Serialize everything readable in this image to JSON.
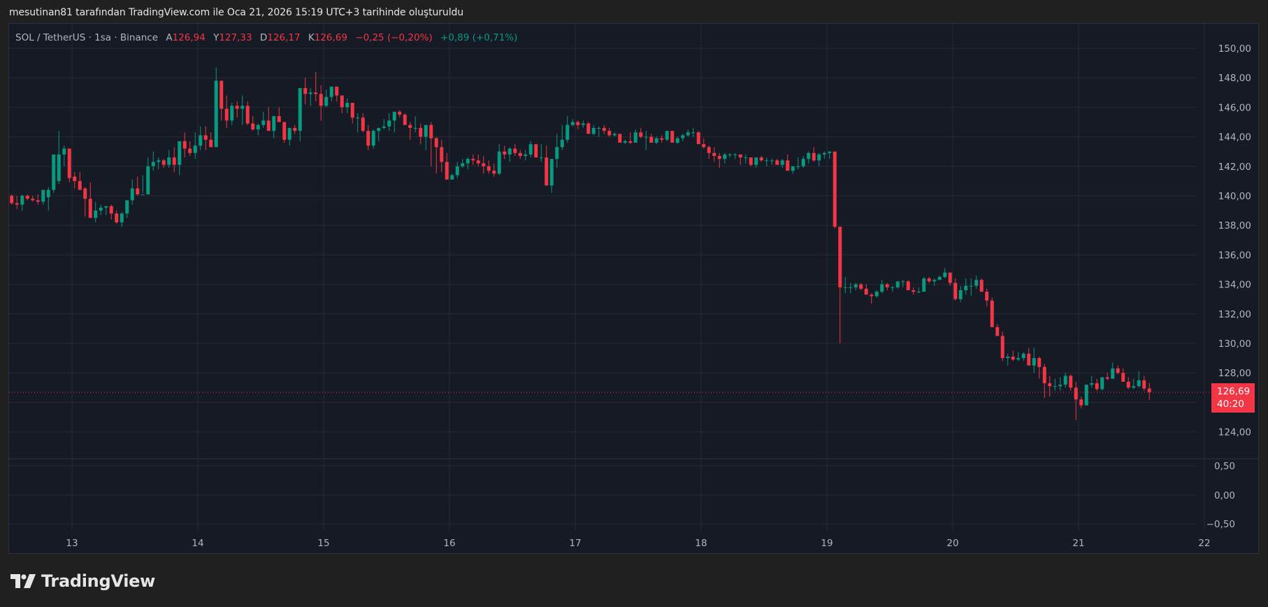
{
  "header": {
    "credit": "mesutinan81 tarafından TradingView.com ile Oca 21, 2026 15:19 UTC+3 tarihinde oluşturuldu"
  },
  "legend": {
    "symbol": "SOL / TetherUS · 1sa · Binance",
    "open_label": "A",
    "open": "126,94",
    "high_label": "Y",
    "high": "127,33",
    "low_label": "D",
    "low": "126,17",
    "close_label": "K",
    "close": "126,69",
    "change": "−0,25 (−0,20%)",
    "change2": "+0,89 (+0,71%)"
  },
  "price_tag": {
    "price": "126,69",
    "countdown": "40:20"
  },
  "logo": {
    "text": "TradingView"
  },
  "colors": {
    "up": "#089981",
    "down": "#f23645",
    "background": "#161a25",
    "grid": "#262a35"
  },
  "chart_data": {
    "type": "candlestick",
    "title": "SOL / TetherUS · 1sa · Binance",
    "xlabel": "",
    "ylabel": "",
    "x_ticks": [
      "13",
      "14",
      "15",
      "16",
      "17",
      "18",
      "19",
      "20",
      "21",
      "22"
    ],
    "y_ticks": [
      "150,00",
      "148,00",
      "146,00",
      "144,00",
      "142,00",
      "140,00",
      "138,00",
      "136,00",
      "134,00",
      "132,00",
      "130,00",
      "128,00",
      "126,00",
      "124,00"
    ],
    "ylim": [
      123.0,
      151.5
    ],
    "sub_pane": {
      "y_ticks": [
        "0,50",
        "0,00",
        "−0,50"
      ],
      "ylim": [
        -0.6,
        0.6
      ]
    },
    "grid": true,
    "last_price": 126.69,
    "candles_per_day": 24,
    "first_candle_offset_hours": -12,
    "ohlc": [
      [
        140.0,
        140.1,
        139.4,
        139.5
      ],
      [
        139.5,
        140.0,
        139.1,
        139.4
      ],
      [
        139.4,
        140.1,
        139.0,
        140.0
      ],
      [
        140.0,
        140.1,
        139.7,
        139.8
      ],
      [
        139.8,
        140.0,
        139.6,
        139.7
      ],
      [
        139.7,
        140.1,
        139.4,
        139.6
      ],
      [
        139.6,
        140.3,
        139.4,
        140.4
      ],
      [
        139.9,
        140.6,
        139.0,
        140.4
      ],
      [
        140.4,
        141.5,
        140.2,
        142.8
      ],
      [
        141.0,
        144.4,
        140.8,
        142.8
      ],
      [
        142.8,
        143.4,
        142.0,
        143.2
      ],
      [
        143.2,
        143.0,
        140.9,
        141.2
      ],
      [
        141.3,
        141.6,
        140.5,
        141.0
      ],
      [
        141.0,
        141.6,
        140.4,
        140.4
      ],
      [
        140.5,
        140.6,
        138.6,
        139.8
      ],
      [
        139.8,
        140.9,
        138.8,
        138.5
      ],
      [
        138.5,
        139.6,
        138.2,
        139.0
      ],
      [
        139.0,
        139.4,
        138.7,
        139.2
      ],
      [
        139.2,
        139.3,
        138.7,
        139.3
      ],
      [
        139.3,
        139.4,
        138.4,
        138.8
      ],
      [
        138.8,
        139.0,
        138.1,
        138.2
      ],
      [
        138.2,
        138.9,
        137.9,
        138.8
      ],
      [
        138.8,
        139.5,
        138.5,
        139.7
      ],
      [
        139.7,
        141.1,
        139.4,
        140.5
      ],
      [
        140.5,
        141.3,
        140.0,
        140.1
      ],
      [
        140.1,
        141.4,
        140.2,
        140.1
      ],
      [
        140.1,
        142.6,
        140.1,
        142.0
      ],
      [
        142.0,
        143.0,
        141.7,
        142.3
      ],
      [
        142.3,
        142.6,
        141.8,
        142.4
      ],
      [
        142.4,
        142.5,
        141.9,
        142.1
      ],
      [
        142.1,
        143.1,
        141.9,
        142.6
      ],
      [
        142.6,
        143.3,
        141.6,
        142.1
      ],
      [
        142.1,
        143.6,
        141.4,
        143.7
      ],
      [
        143.7,
        144.3,
        142.6,
        143.2
      ],
      [
        143.2,
        143.7,
        142.7,
        142.9
      ],
      [
        142.9,
        144.3,
        142.5,
        143.4
      ],
      [
        143.4,
        144.7,
        143.1,
        144.1
      ],
      [
        144.1,
        144.7,
        143.1,
        143.8
      ],
      [
        143.8,
        144.3,
        143.3,
        143.3
      ],
      [
        143.3,
        148.7,
        143.3,
        147.8
      ],
      [
        147.8,
        147.2,
        145.1,
        145.9
      ],
      [
        145.9,
        146.8,
        144.6,
        145.1
      ],
      [
        145.1,
        146.3,
        144.8,
        146.1
      ],
      [
        146.1,
        146.4,
        145.3,
        145.9
      ],
      [
        145.9,
        146.8,
        144.8,
        146.1
      ],
      [
        146.1,
        146.4,
        144.8,
        144.9
      ],
      [
        144.9,
        145.4,
        144.4,
        144.5
      ],
      [
        144.5,
        144.9,
        144.1,
        144.8
      ],
      [
        144.8,
        145.7,
        144.6,
        145.1
      ],
      [
        145.1,
        146.0,
        144.4,
        144.4
      ],
      [
        144.4,
        145.3,
        143.9,
        145.4
      ],
      [
        145.4,
        146.0,
        145.1,
        145.0
      ],
      [
        145.0,
        145.0,
        143.6,
        143.8
      ],
      [
        143.8,
        144.3,
        143.4,
        144.6
      ],
      [
        144.6,
        144.8,
        144.2,
        144.4
      ],
      [
        144.4,
        147.0,
        143.7,
        147.3
      ],
      [
        147.3,
        148.0,
        146.2,
        146.9
      ],
      [
        146.9,
        147.3,
        146.1,
        147.0
      ],
      [
        147.0,
        148.4,
        146.4,
        146.9
      ],
      [
        146.9,
        147.5,
        145.1,
        146.1
      ],
      [
        146.1,
        147.2,
        146.0,
        146.7
      ],
      [
        146.7,
        147.4,
        146.4,
        147.4
      ],
      [
        147.4,
        147.3,
        146.4,
        146.8
      ],
      [
        146.8,
        146.8,
        145.6,
        146.0
      ],
      [
        146.0,
        146.6,
        145.6,
        146.3
      ],
      [
        146.3,
        146.2,
        144.9,
        145.3
      ],
      [
        145.3,
        145.6,
        144.3,
        145.3
      ],
      [
        145.3,
        145.6,
        144.3,
        144.4
      ],
      [
        144.4,
        144.8,
        143.1,
        143.4
      ],
      [
        143.4,
        144.5,
        143.2,
        144.4
      ],
      [
        144.4,
        144.6,
        143.7,
        144.6
      ],
      [
        144.6,
        145.2,
        144.5,
        144.7
      ],
      [
        144.7,
        145.6,
        144.4,
        145.1
      ],
      [
        145.1,
        145.7,
        144.3,
        145.7
      ],
      [
        145.7,
        145.8,
        145.3,
        145.5
      ],
      [
        145.5,
        145.6,
        144.8,
        144.8
      ],
      [
        144.8,
        145.0,
        143.8,
        144.6
      ],
      [
        144.6,
        145.4,
        144.3,
        144.6
      ],
      [
        144.6,
        144.9,
        143.5,
        144.0
      ],
      [
        144.0,
        144.6,
        143.1,
        144.8
      ],
      [
        144.8,
        145.0,
        142.0,
        143.9
      ],
      [
        143.9,
        144.0,
        141.5,
        143.3
      ],
      [
        143.3,
        143.8,
        141.6,
        142.3
      ],
      [
        142.3,
        142.9,
        141.4,
        141.1
      ],
      [
        141.1,
        141.5,
        141.2,
        141.4
      ],
      [
        141.4,
        142.3,
        141.2,
        142.0
      ],
      [
        142.0,
        142.5,
        141.9,
        142.2
      ],
      [
        142.2,
        142.6,
        141.8,
        142.5
      ],
      [
        142.5,
        142.8,
        142.1,
        142.4
      ],
      [
        142.4,
        142.8,
        142.0,
        142.2
      ],
      [
        142.2,
        142.7,
        141.5,
        142.0
      ],
      [
        142.0,
        142.4,
        141.5,
        141.7
      ],
      [
        141.7,
        142.2,
        141.3,
        141.5
      ],
      [
        141.5,
        143.5,
        141.4,
        143.0
      ],
      [
        143.0,
        143.4,
        142.5,
        142.8
      ],
      [
        142.8,
        143.3,
        142.3,
        143.2
      ],
      [
        143.2,
        143.5,
        142.7,
        142.9
      ],
      [
        142.9,
        143.1,
        142.5,
        142.7
      ],
      [
        142.7,
        143.1,
        142.4,
        142.8
      ],
      [
        142.8,
        143.7,
        142.6,
        143.5
      ],
      [
        143.5,
        143.5,
        142.6,
        142.6
      ],
      [
        142.6,
        143.5,
        142.3,
        142.6
      ],
      [
        142.6,
        143.4,
        141.8,
        140.7
      ],
      [
        140.7,
        142.2,
        140.2,
        142.5
      ],
      [
        142.5,
        144.2,
        141.9,
        143.3
      ],
      [
        143.3,
        144.8,
        143.1,
        143.8
      ],
      [
        143.8,
        145.4,
        143.6,
        144.8
      ],
      [
        144.8,
        145.2,
        144.7,
        145.0
      ],
      [
        145.0,
        145.1,
        144.5,
        144.8
      ],
      [
        144.8,
        145.1,
        144.6,
        144.9
      ],
      [
        144.9,
        145.0,
        144.2,
        144.2
      ],
      [
        144.2,
        144.8,
        144.1,
        144.6
      ],
      [
        144.6,
        144.7,
        144.0,
        144.6
      ],
      [
        144.6,
        144.8,
        144.2,
        144.4
      ],
      [
        144.4,
        144.6,
        144.0,
        144.1
      ],
      [
        144.1,
        144.3,
        144.0,
        144.2
      ],
      [
        144.2,
        144.2,
        143.6,
        143.6
      ],
      [
        143.6,
        143.8,
        143.5,
        143.7
      ],
      [
        143.7,
        144.3,
        143.5,
        143.6
      ],
      [
        143.6,
        144.5,
        143.7,
        144.3
      ],
      [
        144.3,
        144.6,
        143.9,
        144.0
      ],
      [
        144.0,
        144.4,
        143.1,
        144.0
      ],
      [
        144.0,
        144.2,
        143.6,
        143.6
      ],
      [
        143.6,
        144.0,
        143.5,
        143.9
      ],
      [
        143.9,
        144.1,
        143.6,
        143.8
      ],
      [
        143.8,
        144.4,
        143.7,
        144.4
      ],
      [
        144.4,
        144.4,
        143.6,
        143.6
      ],
      [
        143.6,
        144.0,
        143.5,
        143.9
      ],
      [
        143.9,
        144.2,
        143.7,
        144.1
      ],
      [
        144.1,
        144.5,
        144.0,
        144.3
      ],
      [
        144.3,
        144.6,
        144.0,
        144.3
      ],
      [
        144.3,
        144.4,
        143.5,
        143.5
      ],
      [
        143.5,
        143.9,
        143.2,
        143.3
      ],
      [
        143.3,
        143.4,
        142.5,
        142.9
      ],
      [
        142.9,
        143.3,
        142.3,
        142.7
      ],
      [
        142.7,
        142.9,
        141.9,
        142.5
      ],
      [
        142.5,
        142.9,
        142.2,
        142.8
      ],
      [
        142.8,
        142.9,
        142.6,
        142.8
      ],
      [
        142.8,
        142.9,
        142.5,
        142.8
      ],
      [
        142.8,
        142.8,
        142.1,
        142.6
      ],
      [
        142.6,
        142.8,
        142.2,
        142.6
      ],
      [
        142.6,
        142.6,
        142.0,
        142.1
      ],
      [
        142.1,
        142.6,
        141.9,
        142.6
      ],
      [
        142.6,
        142.7,
        142.3,
        142.4
      ],
      [
        142.4,
        142.6,
        142.0,
        142.4
      ],
      [
        142.4,
        142.5,
        142.1,
        142.4
      ],
      [
        142.4,
        142.5,
        142.1,
        142.1
      ],
      [
        142.1,
        142.5,
        141.9,
        142.4
      ],
      [
        142.4,
        142.8,
        141.7,
        141.7
      ],
      [
        141.7,
        142.0,
        141.5,
        142.0
      ],
      [
        142.0,
        142.6,
        141.8,
        142.0
      ],
      [
        142.0,
        142.7,
        141.9,
        142.5
      ],
      [
        142.5,
        143.0,
        142.2,
        142.9
      ],
      [
        142.9,
        143.3,
        142.3,
        142.4
      ],
      [
        142.4,
        142.9,
        142.0,
        142.8
      ],
      [
        142.8,
        143.0,
        142.5,
        142.9
      ],
      [
        142.9,
        143.0,
        142.5,
        143.0
      ],
      [
        143.0,
        142.9,
        137.8,
        137.9
      ],
      [
        137.9,
        137.9,
        130.0,
        133.8
      ],
      [
        133.8,
        134.5,
        133.4,
        133.8
      ],
      [
        133.8,
        134.1,
        133.4,
        133.8
      ],
      [
        133.8,
        134.1,
        133.6,
        134.0
      ],
      [
        134.0,
        134.1,
        133.6,
        133.7
      ],
      [
        133.7,
        134.0,
        133.4,
        133.3
      ],
      [
        133.3,
        133.4,
        132.7,
        133.2
      ],
      [
        133.2,
        133.6,
        133.1,
        133.5
      ],
      [
        133.5,
        134.3,
        133.4,
        134.0
      ],
      [
        134.0,
        134.1,
        133.6,
        133.8
      ],
      [
        133.8,
        133.9,
        133.5,
        133.8
      ],
      [
        133.8,
        134.2,
        133.7,
        134.2
      ],
      [
        134.2,
        134.3,
        133.8,
        134.2
      ],
      [
        134.2,
        134.3,
        133.6,
        133.6
      ],
      [
        133.6,
        133.8,
        133.3,
        133.5
      ],
      [
        133.5,
        133.8,
        133.4,
        133.5
      ],
      [
        133.5,
        134.5,
        133.5,
        134.4
      ],
      [
        134.4,
        134.5,
        134.1,
        134.2
      ],
      [
        134.2,
        134.4,
        133.9,
        134.3
      ],
      [
        134.3,
        134.6,
        134.3,
        134.5
      ],
      [
        134.5,
        135.1,
        134.4,
        134.8
      ],
      [
        134.8,
        134.8,
        133.9,
        134.1
      ],
      [
        134.1,
        134.4,
        132.9,
        133.0
      ],
      [
        133.0,
        133.9,
        132.8,
        133.6
      ],
      [
        133.6,
        134.4,
        133.3,
        133.9
      ],
      [
        133.9,
        134.4,
        133.2,
        133.9
      ],
      [
        133.9,
        134.6,
        133.7,
        134.3
      ],
      [
        134.3,
        134.4,
        133.5,
        133.5
      ],
      [
        133.5,
        133.7,
        132.5,
        132.9
      ],
      [
        132.9,
        133.1,
        131.4,
        131.1
      ],
      [
        131.1,
        131.3,
        130.8,
        130.5
      ],
      [
        130.5,
        130.8,
        128.8,
        129.0
      ],
      [
        129.0,
        129.3,
        128.5,
        129.1
      ],
      [
        129.1,
        129.5,
        128.8,
        128.9
      ],
      [
        128.9,
        129.4,
        128.8,
        129.0
      ],
      [
        129.0,
        129.4,
        128.8,
        129.3
      ],
      [
        129.3,
        129.7,
        128.8,
        128.5
      ],
      [
        128.5,
        129.7,
        128.0,
        129.0
      ],
      [
        129.0,
        129.1,
        127.6,
        128.4
      ],
      [
        128.4,
        128.6,
        126.3,
        127.3
      ],
      [
        127.3,
        127.8,
        126.4,
        127.1
      ],
      [
        127.1,
        127.6,
        126.8,
        127.1
      ],
      [
        127.1,
        127.7,
        126.8,
        127.2
      ],
      [
        127.2,
        128.0,
        127.0,
        127.8
      ],
      [
        127.8,
        127.9,
        126.8,
        127.0
      ],
      [
        127.0,
        127.4,
        124.8,
        126.2
      ],
      [
        126.2,
        126.4,
        125.6,
        125.8
      ],
      [
        125.8,
        127.2,
        125.8,
        127.2
      ],
      [
        127.2,
        127.8,
        127.0,
        127.3
      ],
      [
        127.3,
        127.6,
        126.8,
        126.9
      ],
      [
        126.9,
        127.7,
        126.8,
        127.7
      ],
      [
        127.7,
        128.0,
        127.5,
        127.6
      ],
      [
        127.6,
        128.7,
        127.6,
        128.3
      ],
      [
        128.3,
        128.5,
        127.9,
        128.0
      ],
      [
        128.0,
        128.3,
        127.4,
        127.4
      ],
      [
        127.4,
        127.7,
        126.9,
        127.0
      ],
      [
        127.0,
        127.6,
        126.9,
        127.1
      ],
      [
        127.1,
        128.1,
        127.0,
        127.5
      ],
      [
        127.5,
        127.8,
        126.8,
        126.94
      ],
      [
        126.94,
        127.33,
        126.17,
        126.69
      ]
    ]
  }
}
